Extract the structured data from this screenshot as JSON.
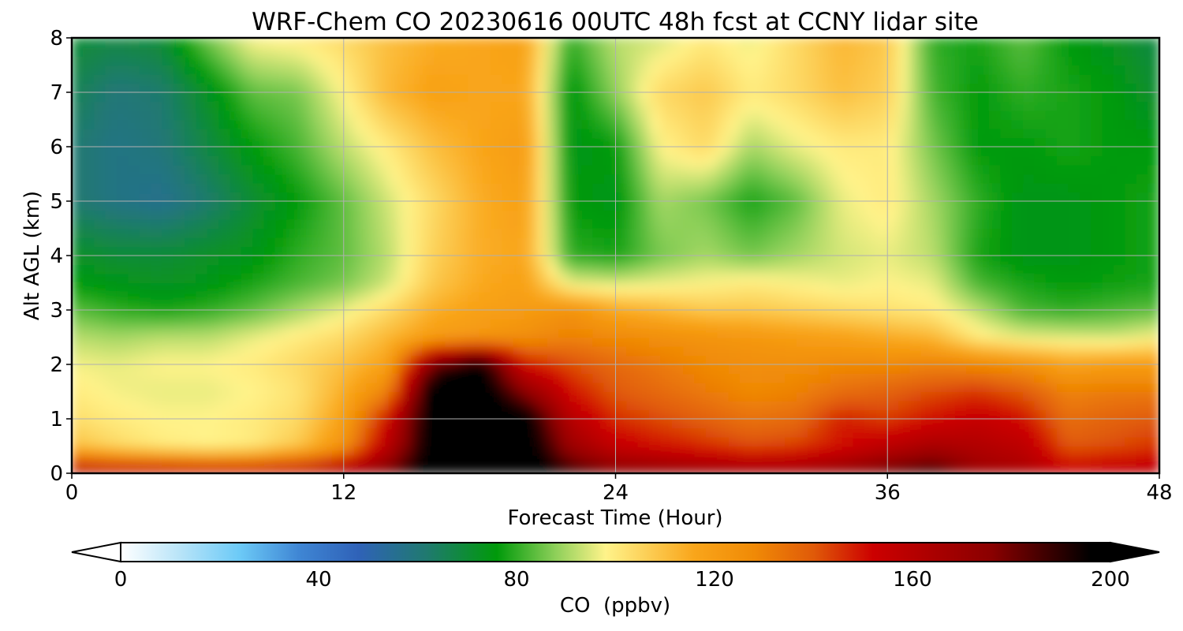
{
  "chart_data": {
    "type": "heatmap",
    "title": "WRF-Chem CO  20230616 00UTC 48h fcst at CCNY lidar site",
    "xlabel": "Forecast Time (Hour)",
    "ylabel": "Alt AGL (km)",
    "xlim": [
      0,
      48
    ],
    "ylim": [
      0,
      8
    ],
    "xticks": [
      0,
      12,
      24,
      36,
      48
    ],
    "yticks": [
      0,
      1,
      2,
      3,
      4,
      5,
      6,
      7,
      8
    ],
    "grid": true,
    "colorbar": {
      "label": "CO  (ppbv)",
      "range": [
        0,
        200
      ],
      "ticks": [
        0,
        40,
        80,
        120,
        160,
        200
      ],
      "extend": "both",
      "placement": "bottom",
      "stops": [
        [
          0,
          "#ffffff"
        ],
        [
          12,
          "#b8e4f8"
        ],
        [
          24,
          "#6ccaf7"
        ],
        [
          36,
          "#3f86d4"
        ],
        [
          48,
          "#2f62b8"
        ],
        [
          62,
          "#1f7a6e"
        ],
        [
          76,
          "#009a0a"
        ],
        [
          88,
          "#8fd05a"
        ],
        [
          98,
          "#fff38a"
        ],
        [
          116,
          "#f9a51a"
        ],
        [
          128,
          "#f08a06"
        ],
        [
          140,
          "#e05a08"
        ],
        [
          152,
          "#cc0000"
        ],
        [
          176,
          "#8a0000"
        ],
        [
          196,
          "#000000"
        ],
        [
          200,
          "#000000"
        ]
      ]
    },
    "x": [
      0,
      2,
      4,
      6,
      8,
      10,
      12,
      14,
      16,
      18,
      20,
      22,
      24,
      26,
      28,
      30,
      32,
      34,
      36,
      38,
      40,
      42,
      44,
      46,
      48
    ],
    "y": [
      0,
      0.5,
      1,
      1.5,
      2,
      2.5,
      3,
      3.5,
      4,
      5,
      6,
      7,
      8
    ],
    "values": [
      [
        165,
        162,
        162,
        160,
        160,
        162,
        168,
        180,
        205,
        205,
        205,
        190,
        178,
        175,
        172,
        170,
        170,
        175,
        182,
        190,
        170,
        165,
        155,
        158,
        160
      ],
      [
        110,
        104,
        100,
        98,
        100,
        108,
        124,
        160,
        205,
        205,
        205,
        170,
        155,
        150,
        146,
        142,
        144,
        150,
        158,
        165,
        162,
        158,
        140,
        142,
        145
      ],
      [
        103,
        100,
        98,
        98,
        100,
        104,
        118,
        152,
        205,
        205,
        202,
        160,
        146,
        142,
        138,
        134,
        136,
        148,
        144,
        150,
        155,
        150,
        135,
        138,
        140
      ],
      [
        100,
        97,
        96,
        96,
        98,
        102,
        114,
        130,
        205,
        205,
        175,
        150,
        140,
        136,
        132,
        128,
        130,
        135,
        138,
        142,
        145,
        140,
        130,
        132,
        132
      ],
      [
        97,
        96,
        98,
        98,
        100,
        104,
        110,
        118,
        180,
        200,
        150,
        142,
        136,
        132,
        128,
        126,
        126,
        128,
        128,
        130,
        128,
        125,
        118,
        120,
        120
      ],
      [
        92,
        90,
        92,
        92,
        96,
        100,
        104,
        112,
        120,
        122,
        126,
        130,
        128,
        126,
        124,
        122,
        120,
        118,
        115,
        112,
        100,
        96,
        95,
        94,
        98
      ],
      [
        84,
        80,
        78,
        80,
        84,
        90,
        96,
        104,
        114,
        118,
        120,
        125,
        116,
        112,
        108,
        108,
        106,
        104,
        102,
        100,
        92,
        82,
        80,
        82,
        84
      ],
      [
        76,
        74,
        72,
        74,
        78,
        82,
        86,
        94,
        108,
        115,
        118,
        96,
        94,
        96,
        98,
        100,
        98,
        96,
        98,
        96,
        82,
        78,
        76,
        77,
        78
      ],
      [
        72,
        70,
        70,
        72,
        74,
        80,
        84,
        92,
        106,
        114,
        116,
        80,
        78,
        86,
        90,
        86,
        90,
        94,
        96,
        92,
        78,
        74,
        74,
        76,
        78
      ],
      [
        62,
        58,
        56,
        62,
        70,
        76,
        84,
        94,
        104,
        114,
        118,
        76,
        74,
        90,
        86,
        78,
        84,
        96,
        100,
        90,
        80,
        74,
        74,
        76,
        78
      ],
      [
        62,
        58,
        60,
        68,
        76,
        82,
        92,
        100,
        110,
        116,
        120,
        74,
        76,
        98,
        104,
        90,
        96,
        100,
        100,
        86,
        76,
        76,
        78,
        76,
        76
      ],
      [
        66,
        60,
        62,
        72,
        84,
        86,
        98,
        112,
        118,
        116,
        116,
        74,
        88,
        104,
        108,
        100,
        104,
        110,
        106,
        82,
        76,
        80,
        78,
        76,
        70
      ],
      [
        70,
        68,
        70,
        86,
        98,
        100,
        104,
        110,
        114,
        116,
        118,
        80,
        92,
        94,
        100,
        96,
        104,
        112,
        108,
        80,
        78,
        84,
        76,
        72,
        68
      ]
    ]
  }
}
